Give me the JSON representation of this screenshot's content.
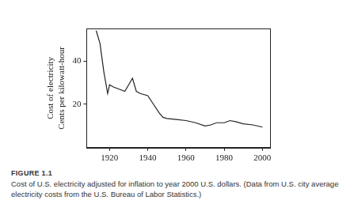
{
  "chart_data": {
    "type": "line",
    "y_label": [
      "Cost of electricity",
      "Cents per kilowatt-hour"
    ],
    "x": [
      1913,
      1915,
      1917,
      1919,
      1920,
      1922,
      1925,
      1928,
      1930,
      1932,
      1934,
      1936,
      1940,
      1943,
      1946,
      1948,
      1950,
      1955,
      1960,
      1965,
      1970,
      1973,
      1976,
      1980,
      1983,
      1986,
      1990,
      1995,
      2000
    ],
    "values": [
      54,
      48,
      35,
      25,
      29,
      28,
      27,
      26,
      29,
      32,
      26,
      25,
      24,
      20,
      16,
      14,
      13.5,
      13,
      12.5,
      11.5,
      10,
      10.5,
      11.5,
      11.5,
      12.5,
      12,
      11,
      10.5,
      9.5
    ],
    "color": "#222222",
    "xlim": [
      1908,
      2004
    ],
    "xticks": [
      1920,
      1940,
      1960,
      1980,
      2000
    ],
    "ylim": [
      0,
      55
    ],
    "yticks": [
      20,
      40
    ],
    "grid": false
  },
  "figure_label": "FIGURE 1.1",
  "caption": "Cost of U.S. electricity adjusted for inflation to year 2000 U.S. dollars. (Data from U.S. city average electricity costs from the U.S. Bureau of Labor Statistics.)"
}
